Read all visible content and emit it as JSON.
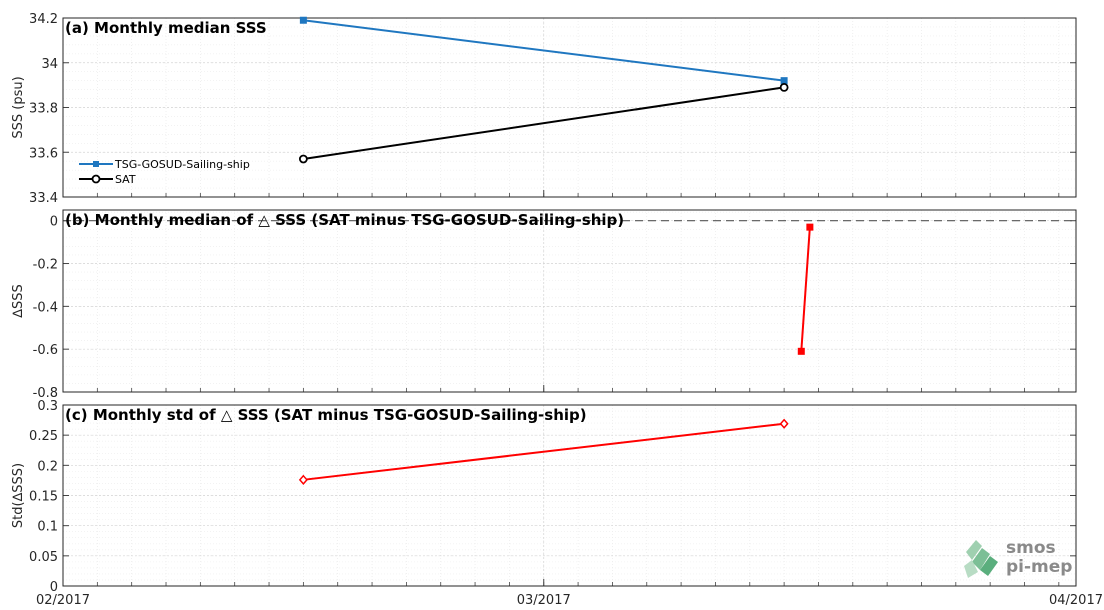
{
  "chart_data": [
    {
      "panel": "a",
      "type": "line",
      "title": "(a) Monthly median SSS",
      "ylabel": "SSS (psu)",
      "ylim": [
        33.4,
        34.2
      ],
      "yticks": [
        "33.4",
        "33.6",
        "33.8",
        "34",
        "34.2"
      ],
      "grid": true,
      "legend_position": "left",
      "series": [
        {
          "name": "TSG-GOSUD-Sailing-ship",
          "color": "#1f77c0",
          "marker": "square",
          "x": [
            "2017-02-15",
            "2017-03-15"
          ],
          "values": [
            34.19,
            33.92
          ]
        },
        {
          "name": "SAT",
          "color": "#000000",
          "marker": "circle",
          "x": [
            "2017-02-15",
            "2017-03-15"
          ],
          "values": [
            33.57,
            33.89
          ]
        }
      ]
    },
    {
      "panel": "b",
      "type": "line",
      "title": "(b) Monthly median of △ SSS (SAT minus TSG-GOSUD-Sailing-ship)",
      "ylabel": "∆SSS",
      "ylim": [
        -0.8,
        0.05
      ],
      "yticks": [
        "-0.8",
        "-0.6",
        "-0.4",
        "-0.2",
        "0"
      ],
      "zero_line": true,
      "grid": true,
      "series": [
        {
          "color": "#ff0000",
          "marker": "square",
          "x": [
            "2017-03-16",
            "2017-03-16 12:00"
          ],
          "values": [
            -0.61,
            -0.03
          ]
        }
      ]
    },
    {
      "panel": "c",
      "type": "line",
      "title": "(c) Monthly std of △ SSS (SAT minus TSG-GOSUD-Sailing-ship)",
      "ylabel": "Std(∆SSS)",
      "ylim": [
        0,
        0.3
      ],
      "yticks": [
        "0",
        "0.05",
        "0.1",
        "0.15",
        "0.2",
        "0.25",
        "0.3"
      ],
      "grid": true,
      "series": [
        {
          "color": "#ff0000",
          "marker": "diamond",
          "x": [
            "2017-02-15",
            "2017-03-15"
          ],
          "values": [
            0.176,
            0.269
          ]
        }
      ]
    }
  ],
  "xaxis": {
    "start": "2017-02-01",
    "end": "2017-04-01",
    "ticks": [
      {
        "date": "2017-02-01",
        "label": "02/2017"
      },
      {
        "date": "2017-03-01",
        "label": "03/2017"
      },
      {
        "date": "2017-04-01",
        "label": "04/2017"
      }
    ]
  },
  "logo": {
    "line1": "smos",
    "line2": "pi-mep"
  }
}
